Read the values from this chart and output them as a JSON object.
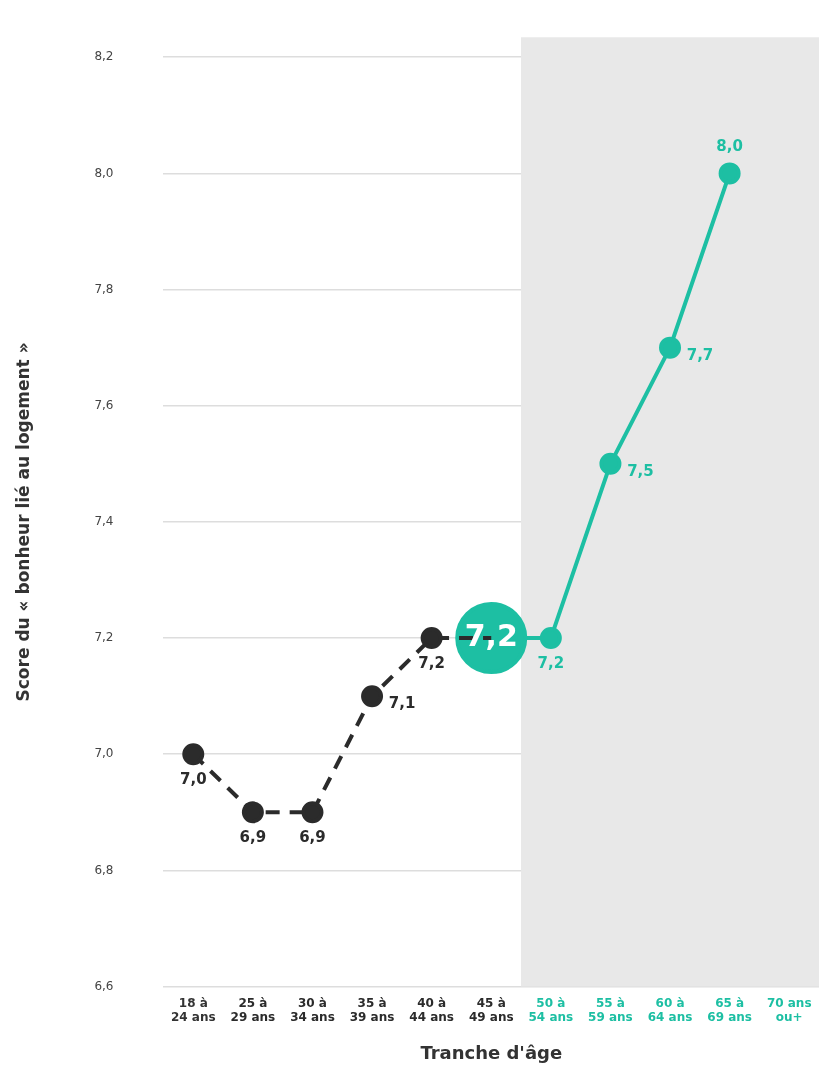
{
  "chart_data": {
    "type": "line",
    "xlabel": "Tranche d'âge",
    "ylabel": "Score du « bonheur lié au logement »",
    "categories": [
      "18 à\n24 ans",
      "25 à\n29 ans",
      "30 à\n34 ans",
      "35 à\n39 ans",
      "40 à\n44 ans",
      "45 à\n49 ans",
      "50 à\n54 ans",
      "55 à\n59 ans",
      "60 à\n64 ans",
      "65 à\n69 ans",
      "70 ans\nou+"
    ],
    "series": [
      {
        "color": "#2b2b2b",
        "line_style": "dashed",
        "values": [
          7.0,
          6.9,
          6.9,
          7.1,
          7.2,
          7.2,
          null,
          null,
          null,
          null,
          null
        ],
        "value_labels": [
          "7,0",
          "6,9",
          "6,9",
          "7,1",
          "7,2",
          null,
          null,
          null,
          null,
          null,
          null
        ]
      },
      {
        "color": "#1dbfa3",
        "line_style": "solid",
        "values": [
          null,
          null,
          null,
          null,
          null,
          7.2,
          7.2,
          7.5,
          7.7,
          8.0,
          null
        ],
        "value_labels": [
          null,
          null,
          null,
          null,
          null,
          "7,2",
          "7,2",
          "7,5",
          "7,7",
          "8,0",
          null
        ]
      }
    ],
    "ylim": [
      6.6,
      8.2
    ],
    "yticks": [
      {
        "value": 6.6,
        "label": "6,6"
      },
      {
        "value": 6.8,
        "label": "6,8"
      },
      {
        "value": 7.0,
        "label": "7,0"
      },
      {
        "value": 7.2,
        "label": "7,2"
      },
      {
        "value": 7.4,
        "label": "7,4"
      },
      {
        "value": 7.6,
        "label": "7,6"
      },
      {
        "value": 7.8,
        "label": "7,8"
      },
      {
        "value": 8.0,
        "label": "8,0"
      },
      {
        "value": 8.2,
        "label": "8,2"
      }
    ],
    "bands": [
      {
        "axis": "x",
        "from": "50 à\n54 ans",
        "to": "70 ans\nou+",
        "color": "#e8e8e8"
      }
    ],
    "grid": "y",
    "marker": "circle",
    "legend": false
  }
}
